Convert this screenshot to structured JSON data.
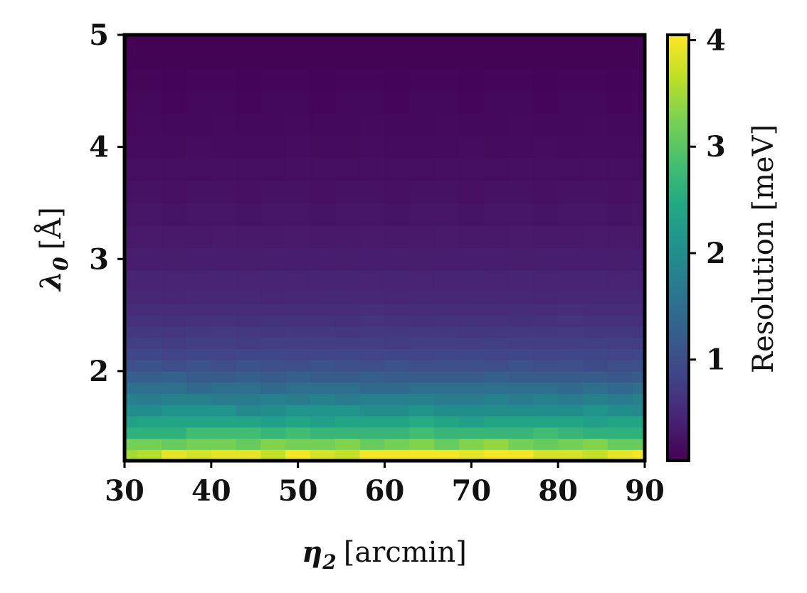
{
  "chart_data": {
    "type": "heatmap",
    "x_unit": "arcmin",
    "xlabel_symbol": "η",
    "xlabel_sub": "2",
    "xlabel_unit": "[arcmin]",
    "ylabel_symbol": "λ",
    "ylabel_sub": "0",
    "ylabel_unit": "[Å]",
    "colorbar_label": "Resolution [meV]",
    "xlim": [
      30,
      90
    ],
    "ylim": [
      1.2,
      5
    ],
    "x_ticks": [
      "30",
      "40",
      "50",
      "60",
      "70",
      "80",
      "90"
    ],
    "y_ticks": [
      "2",
      "3",
      "4",
      "5"
    ],
    "colorbar_ticks": [
      "1",
      "2",
      "3",
      "4"
    ],
    "colorbar_range": [
      0.05,
      4.05
    ],
    "colormap": "viridis",
    "x": [
      30,
      32.86,
      35.71,
      38.57,
      41.43,
      44.29,
      47.14,
      50,
      52.86,
      55.71,
      58.57,
      61.43,
      64.29,
      67.14,
      70,
      72.86,
      75.71,
      78.57,
      81.43,
      84.29,
      87.14,
      90
    ],
    "y_rows": [
      {
        "y": 1.25,
        "values": [
          3.5,
          3.6,
          3.9,
          3.8,
          3.9,
          3.9,
          3.7,
          4.0,
          3.8,
          3.7,
          4.0,
          4.0,
          4.0,
          4.0,
          3.9,
          4.0,
          4.0,
          3.8,
          3.8,
          3.7,
          3.9,
          4.0
        ]
      },
      {
        "y": 1.35,
        "values": [
          3.2,
          3.2,
          3.1,
          3.2,
          3.2,
          3.1,
          3.3,
          3.2,
          3.2,
          3.3,
          3.1,
          3.2,
          3.3,
          3.1,
          3.3,
          3.4,
          3.2,
          3.1,
          3.2,
          3.3,
          3.1,
          3.1
        ]
      },
      {
        "y": 1.45,
        "values": [
          2.6,
          2.6,
          2.6,
          2.8,
          2.8,
          2.8,
          2.7,
          2.8,
          2.7,
          2.7,
          2.7,
          2.7,
          2.8,
          2.7,
          2.7,
          2.7,
          2.7,
          2.8,
          2.7,
          2.6,
          2.6,
          2.6
        ]
      },
      {
        "y": 1.55,
        "values": [
          2.3,
          2.4,
          2.4,
          2.4,
          2.4,
          2.4,
          2.3,
          2.4,
          2.3,
          2.4,
          2.4,
          2.4,
          2.5,
          2.4,
          2.3,
          2.4,
          2.4,
          2.4,
          2.4,
          2.3,
          2.4,
          2.4
        ]
      },
      {
        "y": 1.65,
        "values": [
          2.0,
          2.0,
          2.1,
          2.1,
          2.1,
          1.9,
          2.0,
          2.1,
          2.1,
          2.1,
          2.0,
          2.0,
          2.1,
          2.0,
          2.0,
          2.0,
          2.0,
          2.0,
          2.0,
          2.1,
          2.0,
          1.9
        ]
      },
      {
        "y": 1.75,
        "values": [
          1.8,
          1.7,
          1.8,
          1.8,
          1.7,
          1.7,
          1.8,
          1.7,
          1.8,
          1.7,
          1.8,
          1.8,
          1.8,
          1.7,
          1.7,
          1.8,
          1.7,
          1.8,
          1.7,
          1.8,
          1.7,
          1.8
        ]
      },
      {
        "y": 1.85,
        "values": [
          1.5,
          1.5,
          1.5,
          1.4,
          1.5,
          1.5,
          1.4,
          1.5,
          1.5,
          1.5,
          1.4,
          1.4,
          1.5,
          1.5,
          1.5,
          1.5,
          1.5,
          1.5,
          1.4,
          1.5,
          1.4,
          1.5
        ]
      },
      {
        "y": 1.95,
        "values": [
          1.25,
          1.25,
          1.3,
          1.2,
          1.2,
          1.25,
          1.2,
          1.25,
          1.2,
          1.2,
          1.25,
          1.2,
          1.2,
          1.2,
          1.2,
          1.25,
          1.2,
          1.2,
          1.2,
          1.2,
          1.15,
          1.2
        ]
      },
      {
        "y": 2.05,
        "values": [
          1.0,
          1.05,
          1.0,
          1.05,
          1.0,
          1.05,
          1.0,
          1.0,
          1.05,
          1.0,
          1.0,
          1.05,
          1.0,
          1.0,
          1.0,
          1.0,
          1.05,
          1.0,
          1.0,
          0.95,
          1.0,
          1.0
        ]
      },
      {
        "y": 2.15,
        "values": [
          0.9,
          0.9,
          0.85,
          0.9,
          0.85,
          0.9,
          0.9,
          0.85,
          0.9,
          0.9,
          0.85,
          0.9,
          0.85,
          0.9,
          0.9,
          0.85,
          0.9,
          0.85,
          0.9,
          0.9,
          0.85,
          0.9
        ]
      },
      {
        "y": 2.25,
        "values": [
          0.78,
          0.8,
          0.75,
          0.78,
          0.78,
          0.75,
          0.8,
          0.78,
          0.76,
          0.78,
          0.78,
          0.75,
          0.78,
          0.78,
          0.76,
          0.8,
          0.78,
          0.76,
          0.78,
          0.8,
          0.78,
          0.76
        ]
      },
      {
        "y": 2.35,
        "values": [
          0.7,
          0.7,
          0.68,
          0.7,
          0.72,
          0.7,
          0.68,
          0.7,
          0.7,
          0.68,
          0.7,
          0.7,
          0.7,
          0.7,
          0.68,
          0.7,
          0.7,
          0.7,
          0.72,
          0.7,
          0.7,
          0.68
        ]
      },
      {
        "y": 2.45,
        "values": [
          0.62,
          0.62,
          0.6,
          0.62,
          0.62,
          0.6,
          0.62,
          0.62,
          0.62,
          0.6,
          0.64,
          0.62,
          0.6,
          0.62,
          0.62,
          0.62,
          0.6,
          0.62,
          0.64,
          0.62,
          0.62,
          0.6
        ]
      },
      {
        "y": 2.55,
        "values": [
          0.55,
          0.56,
          0.55,
          0.55,
          0.56,
          0.55,
          0.55,
          0.56,
          0.55,
          0.55,
          0.58,
          0.55,
          0.55,
          0.56,
          0.55,
          0.55,
          0.56,
          0.55,
          0.57,
          0.55,
          0.55,
          0.55
        ]
      },
      {
        "y": 2.65,
        "values": [
          0.5,
          0.5,
          0.48,
          0.5,
          0.5,
          0.5,
          0.48,
          0.5,
          0.5,
          0.5,
          0.5,
          0.48,
          0.5,
          0.5,
          0.5,
          0.5,
          0.5,
          0.48,
          0.5,
          0.5,
          0.5,
          0.5
        ]
      },
      {
        "y": 2.8,
        "values": [
          0.45,
          0.45,
          0.43,
          0.44,
          0.45,
          0.44,
          0.45,
          0.44,
          0.45,
          0.45,
          0.44,
          0.45,
          0.44,
          0.45,
          0.45,
          0.44,
          0.45,
          0.44,
          0.45,
          0.45,
          0.44,
          0.44
        ]
      },
      {
        "y": 3.0,
        "values": [
          0.38,
          0.38,
          0.37,
          0.38,
          0.38,
          0.37,
          0.38,
          0.38,
          0.38,
          0.37,
          0.38,
          0.38,
          0.37,
          0.38,
          0.38,
          0.38,
          0.37,
          0.38,
          0.38,
          0.38,
          0.37,
          0.38
        ]
      },
      {
        "y": 3.2,
        "values": [
          0.32,
          0.33,
          0.32,
          0.32,
          0.33,
          0.32,
          0.32,
          0.33,
          0.32,
          0.32,
          0.33,
          0.32,
          0.32,
          0.33,
          0.32,
          0.32,
          0.33,
          0.32,
          0.32,
          0.33,
          0.32,
          0.32
        ]
      },
      {
        "y": 3.4,
        "values": [
          0.28,
          0.28,
          0.27,
          0.28,
          0.28,
          0.27,
          0.28,
          0.28,
          0.27,
          0.28,
          0.28,
          0.27,
          0.28,
          0.28,
          0.27,
          0.28,
          0.28,
          0.27,
          0.28,
          0.28,
          0.27,
          0.28
        ]
      },
      {
        "y": 3.6,
        "values": [
          0.24,
          0.24,
          0.23,
          0.24,
          0.24,
          0.23,
          0.24,
          0.24,
          0.23,
          0.24,
          0.24,
          0.23,
          0.24,
          0.24,
          0.23,
          0.24,
          0.24,
          0.23,
          0.24,
          0.24,
          0.23,
          0.24
        ]
      },
      {
        "y": 3.8,
        "values": [
          0.2,
          0.21,
          0.2,
          0.2,
          0.21,
          0.2,
          0.2,
          0.21,
          0.2,
          0.2,
          0.21,
          0.2,
          0.2,
          0.21,
          0.2,
          0.2,
          0.21,
          0.2,
          0.2,
          0.21,
          0.2,
          0.2
        ]
      },
      {
        "y": 4.0,
        "values": [
          0.17,
          0.17,
          0.17,
          0.18,
          0.17,
          0.17,
          0.17,
          0.18,
          0.17,
          0.17,
          0.18,
          0.17,
          0.17,
          0.17,
          0.18,
          0.17,
          0.17,
          0.18,
          0.17,
          0.17,
          0.17,
          0.17
        ]
      },
      {
        "y": 4.2,
        "values": [
          0.14,
          0.15,
          0.14,
          0.14,
          0.15,
          0.14,
          0.14,
          0.15,
          0.14,
          0.14,
          0.15,
          0.14,
          0.14,
          0.15,
          0.14,
          0.14,
          0.15,
          0.14,
          0.14,
          0.15,
          0.14,
          0.14
        ]
      },
      {
        "y": 4.4,
        "values": [
          0.12,
          0.12,
          0.11,
          0.12,
          0.12,
          0.11,
          0.12,
          0.12,
          0.11,
          0.12,
          0.12,
          0.11,
          0.12,
          0.12,
          0.11,
          0.12,
          0.12,
          0.11,
          0.12,
          0.12,
          0.11,
          0.12
        ]
      },
      {
        "y": 4.6,
        "values": [
          0.1,
          0.1,
          0.09,
          0.1,
          0.1,
          0.09,
          0.1,
          0.1,
          0.09,
          0.1,
          0.1,
          0.09,
          0.1,
          0.1,
          0.09,
          0.1,
          0.1,
          0.09,
          0.1,
          0.1,
          0.09,
          0.1
        ]
      },
      {
        "y": 4.8,
        "values": [
          0.08,
          0.08,
          0.08,
          0.08,
          0.08,
          0.08,
          0.08,
          0.08,
          0.08,
          0.08,
          0.08,
          0.08,
          0.08,
          0.08,
          0.08,
          0.08,
          0.08,
          0.08,
          0.08,
          0.08,
          0.08,
          0.08
        ]
      },
      {
        "y": 5.0,
        "values": [
          0.06,
          0.06,
          0.06,
          0.06,
          0.06,
          0.06,
          0.06,
          0.06,
          0.06,
          0.06,
          0.06,
          0.06,
          0.06,
          0.06,
          0.06,
          0.06,
          0.06,
          0.06,
          0.06,
          0.06,
          0.06,
          0.06
        ]
      }
    ]
  }
}
